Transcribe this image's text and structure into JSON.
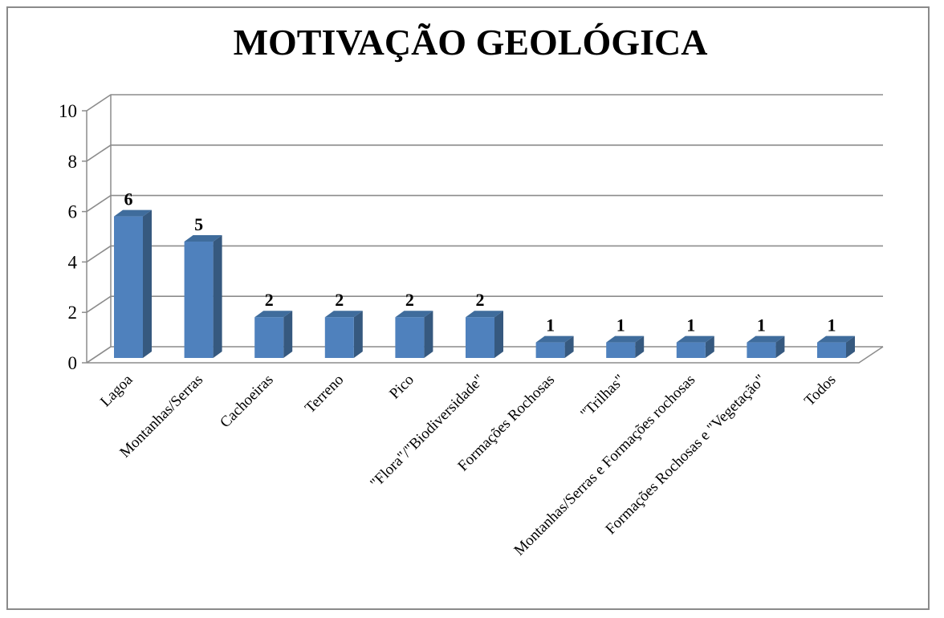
{
  "chart_data": {
    "type": "bar",
    "title": "MOTIVAÇÃO GEOLÓGICA",
    "categories": [
      "Lagoa",
      "Montanhas/Serras",
      "Cachoeiras",
      "Terreno",
      "Pico",
      "\"Flora\"/\"Biodiversidade\"",
      "Formações Rochosas",
      "\"Trilhas\"",
      "Montanhas/Serras e Formações rochosas",
      "Formações Rochosas e \"Vegetação\"",
      "Todos"
    ],
    "values": [
      6,
      5,
      2,
      2,
      2,
      2,
      1,
      1,
      1,
      1,
      1
    ],
    "yticks": [
      "0",
      "2",
      "4",
      "6",
      "8",
      "10"
    ],
    "ylim": [
      0,
      10
    ],
    "data_labels": [
      "6",
      "5",
      "2",
      "2",
      "2",
      "2",
      "1",
      "1",
      "1",
      "1",
      "1"
    ],
    "grid": true,
    "legend": false,
    "bar_color": "#4f81bd",
    "bar_side_color": "#36597f",
    "bar_top_color": "#3f6c9c"
  }
}
